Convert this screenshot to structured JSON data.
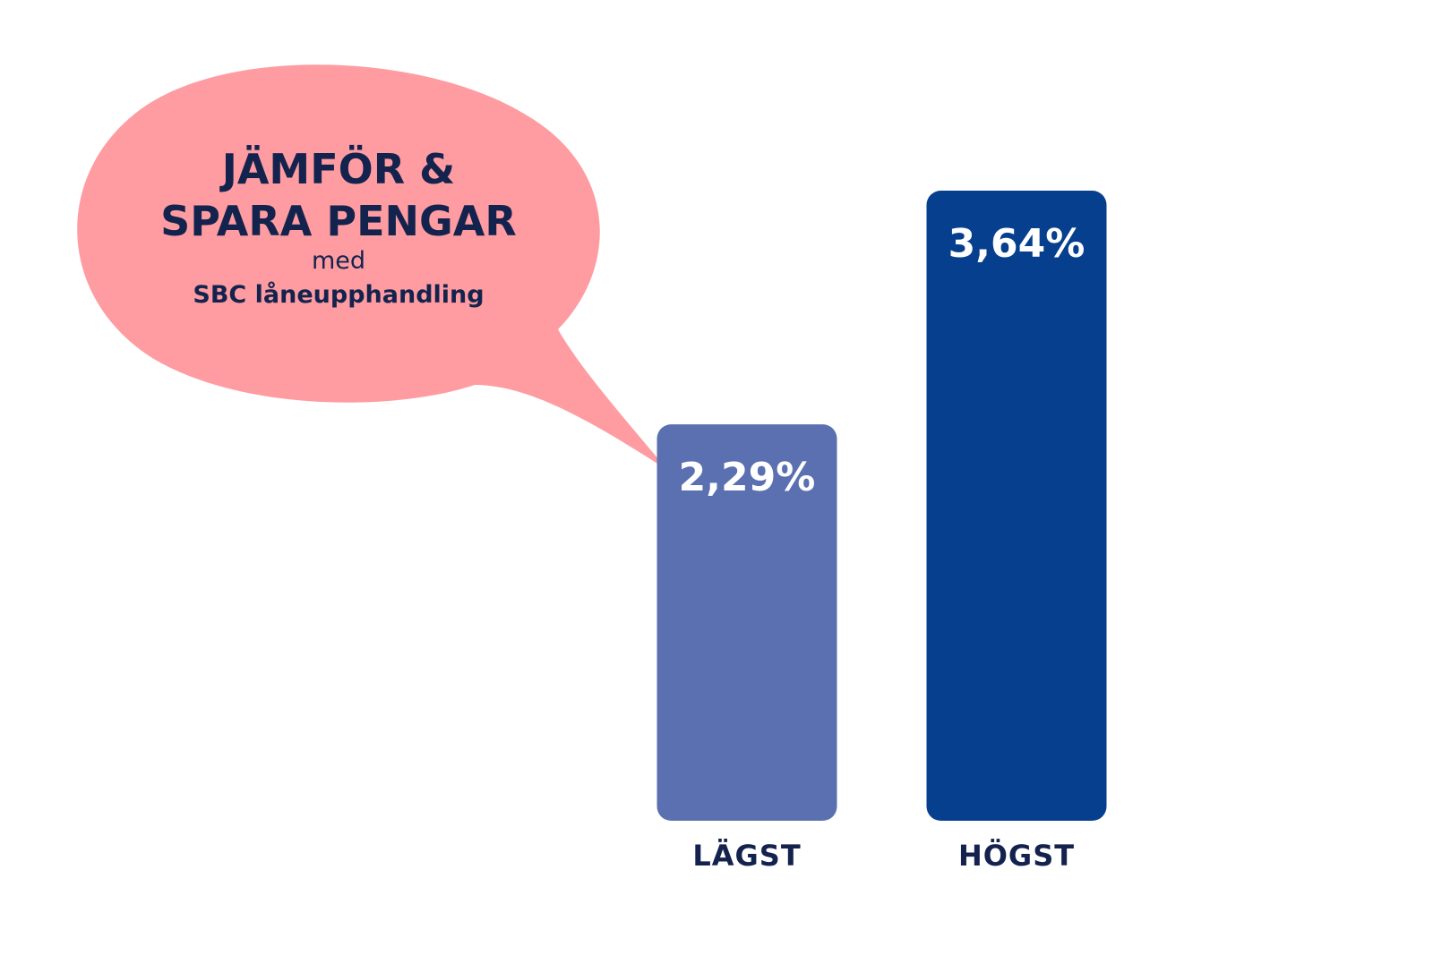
{
  "colors": {
    "bubble": "#fe9ca1",
    "text_dark": "#14234d",
    "bar_lowest": "#5a70b0",
    "bar_highest": "#063f8e",
    "bar_text": "#ffffff"
  },
  "bubble": {
    "line1": "JÄMFÖR &",
    "line2": "SPARA PENGAR",
    "line3": "med",
    "line4": "SBC låneupphandling"
  },
  "chart_data": {
    "type": "bar",
    "categories": [
      "LÄGST",
      "HÖGST"
    ],
    "values": [
      2.29,
      3.64
    ],
    "value_labels": [
      "2,29%",
      "3,64%"
    ],
    "title": "",
    "xlabel": "",
    "ylabel": "",
    "grid": false,
    "legend": "none"
  }
}
